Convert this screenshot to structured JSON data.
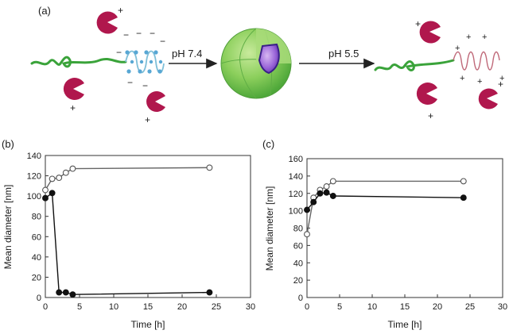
{
  "panel_a": {
    "label": "(a)",
    "arrow1_label": "pH 7.4",
    "arrow2_label": "pH 5.5",
    "charge_plus": "+",
    "charge_minus": "−",
    "colors": {
      "peg_chain": "#3aa33a",
      "polypeptide_helix": "#7fbfd8",
      "charged_polypeptide": "#c06a7a",
      "protein": "#b0174d",
      "micelle_shell": "#6ec24f",
      "micelle_core": "#8a5ad0",
      "minus_charge": "#4a8cc0",
      "plus_charge": "#b0174d"
    }
  },
  "panel_b": {
    "label": "(b)",
    "chart_data": {
      "type": "line",
      "xlabel": "Time [h]",
      "ylabel": "Mean diameter [nm]",
      "xlim": [
        0,
        30
      ],
      "ylim": [
        0,
        140
      ],
      "xticks": [
        0,
        5,
        10,
        15,
        20,
        25,
        30
      ],
      "yticks": [
        0,
        20,
        40,
        60,
        80,
        100,
        120,
        140
      ],
      "grid": false,
      "series": [
        {
          "marker": "open-circle",
          "x": [
            0,
            1,
            2,
            3,
            4,
            24
          ],
          "y": [
            106,
            117,
            118,
            123,
            127,
            128
          ]
        },
        {
          "marker": "filled-circle",
          "x": [
            0,
            1,
            2,
            3,
            4,
            24
          ],
          "y": [
            98,
            103,
            5,
            5,
            3,
            5
          ]
        }
      ]
    }
  },
  "panel_c": {
    "label": "(c)",
    "chart_data": {
      "type": "line",
      "xlabel": "Time [h]",
      "ylabel": "Mean diameter [nm]",
      "xlim": [
        0,
        30
      ],
      "ylim": [
        0,
        160
      ],
      "xticks": [
        0,
        5,
        10,
        15,
        20,
        25,
        30
      ],
      "yticks": [
        0,
        20,
        40,
        60,
        80,
        100,
        120,
        140,
        160
      ],
      "grid": false,
      "series": [
        {
          "marker": "open-circle",
          "x": [
            0,
            1,
            2,
            3,
            4,
            24
          ],
          "y": [
            73,
            115,
            124,
            128,
            134,
            134
          ]
        },
        {
          "marker": "filled-circle",
          "x": [
            0,
            1,
            2,
            3,
            4,
            24
          ],
          "y": [
            101,
            110,
            120,
            121,
            117,
            115
          ]
        }
      ]
    }
  }
}
